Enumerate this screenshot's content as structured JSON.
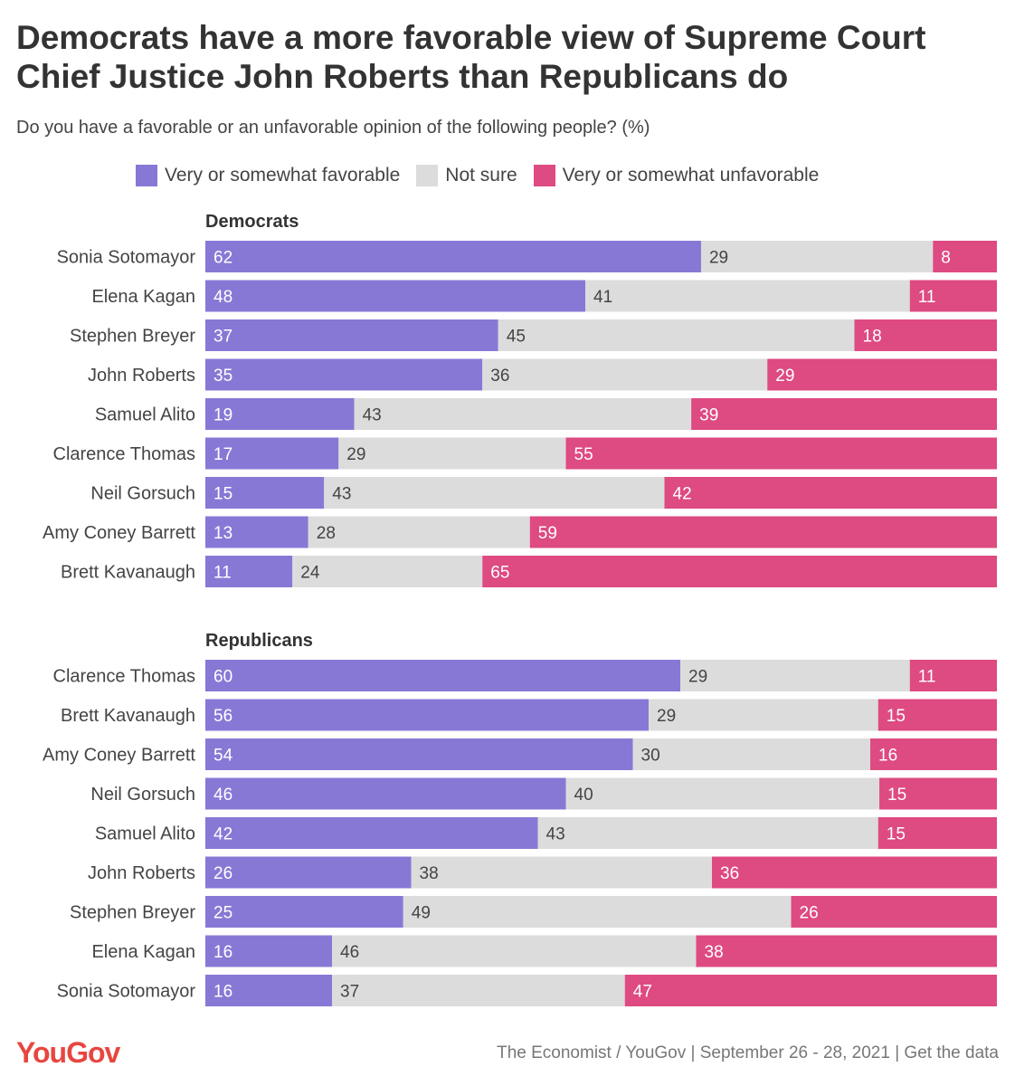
{
  "title": "Democrats have a more favorable view of Supreme Court Chief Justice John Roberts than Republicans do",
  "subtitle": "Do you have a favorable or an unfavorable opinion of the following people? (%)",
  "legend": [
    {
      "label": "Very or somewhat favorable",
      "color": "#8878d6"
    },
    {
      "label": "Not sure",
      "color": "#dcdcdc"
    },
    {
      "label": "Very or somewhat unfavorable",
      "color": "#de4a82"
    }
  ],
  "footer": {
    "logo": "YouGov",
    "source": "The Economist / YouGov | September 26 - 28, 2021 | Get the data"
  },
  "chart_data": [
    {
      "type": "bar",
      "stacked": true,
      "orientation": "horizontal",
      "title": "Democrats",
      "categories": [
        "Sonia Sotomayor",
        "Elena Kagan",
        "Stephen Breyer",
        "John Roberts",
        "Samuel Alito",
        "Clarence Thomas",
        "Neil Gorsuch",
        "Amy Coney Barrett",
        "Brett Kavanaugh"
      ],
      "series": [
        {
          "name": "Very or somewhat favorable",
          "values": [
            62,
            48,
            37,
            35,
            19,
            17,
            15,
            13,
            11
          ]
        },
        {
          "name": "Not sure",
          "values": [
            29,
            41,
            45,
            36,
            43,
            29,
            43,
            28,
            24
          ]
        },
        {
          "name": "Very or somewhat unfavorable",
          "values": [
            8,
            11,
            18,
            29,
            39,
            55,
            42,
            59,
            65
          ]
        }
      ],
      "xlim": [
        0,
        100
      ]
    },
    {
      "type": "bar",
      "stacked": true,
      "orientation": "horizontal",
      "title": "Republicans",
      "categories": [
        "Clarence Thomas",
        "Brett Kavanaugh",
        "Amy Coney Barrett",
        "Neil Gorsuch",
        "Samuel Alito",
        "John Roberts",
        "Stephen Breyer",
        "Elena Kagan",
        "Sonia Sotomayor"
      ],
      "series": [
        {
          "name": "Very or somewhat favorable",
          "values": [
            60,
            56,
            54,
            46,
            42,
            26,
            25,
            16,
            16
          ]
        },
        {
          "name": "Not sure",
          "values": [
            29,
            29,
            30,
            40,
            43,
            38,
            49,
            46,
            37
          ]
        },
        {
          "name": "Very or somewhat unfavorable",
          "values": [
            11,
            15,
            16,
            15,
            15,
            36,
            26,
            38,
            47
          ]
        }
      ],
      "xlim": [
        0,
        100
      ]
    }
  ]
}
